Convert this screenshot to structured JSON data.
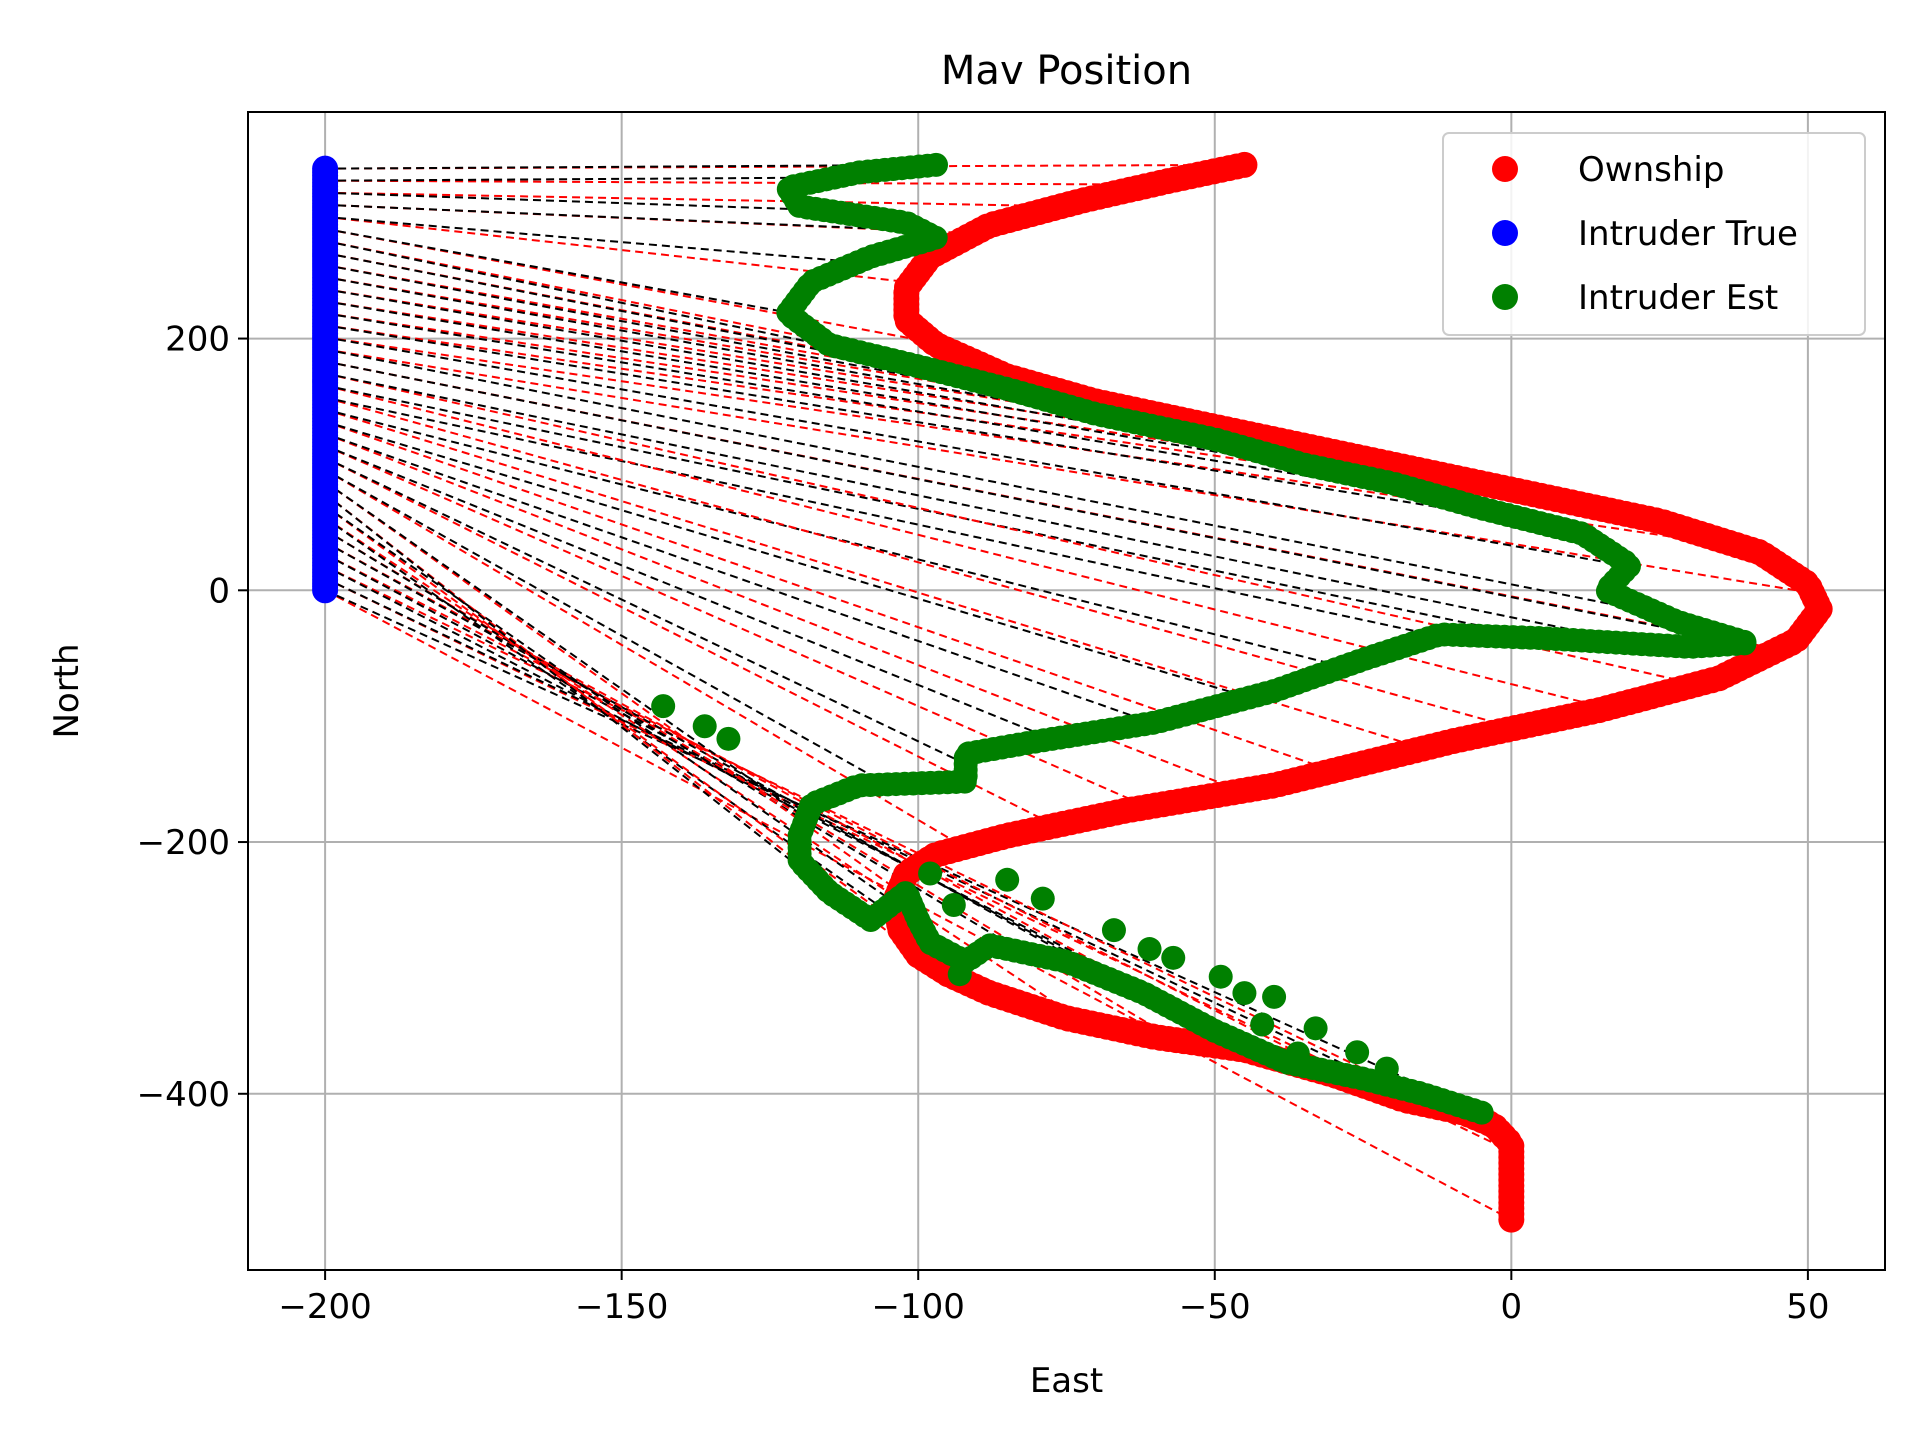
{
  "chart_data": {
    "type": "scatter",
    "title": "Mav Position",
    "xlabel": "East",
    "ylabel": "North",
    "xlim": [
      -213,
      63
    ],
    "ylim": [
      -540,
      380
    ],
    "xticks": [
      -200,
      -150,
      -100,
      -50,
      0,
      50
    ],
    "yticks": [
      -400,
      -200,
      0,
      200
    ],
    "xtick_labels": [
      "−200",
      "−150",
      "−100",
      "−50",
      "0",
      "50"
    ],
    "ytick_labels": [
      "−400",
      "−200",
      "0",
      "200"
    ],
    "grid": true,
    "legend_position": "top-right",
    "series": [
      {
        "name": "Ownship",
        "color": "#ff0000",
        "path": [
          [
            0,
            -500
          ],
          [
            0,
            -440
          ],
          [
            -3,
            -425
          ],
          [
            -8,
            -415
          ],
          [
            -18,
            -405
          ],
          [
            -30,
            -385
          ],
          [
            -45,
            -365
          ],
          [
            -60,
            -355
          ],
          [
            -75,
            -340
          ],
          [
            -88,
            -320
          ],
          [
            -95,
            -305
          ],
          [
            -100,
            -290
          ],
          [
            -103,
            -270
          ],
          [
            -104,
            -248
          ],
          [
            -102,
            -225
          ],
          [
            -97,
            -210
          ],
          [
            -85,
            -195
          ],
          [
            -65,
            -175
          ],
          [
            -40,
            -155
          ],
          [
            -10,
            -120
          ],
          [
            15,
            -95
          ],
          [
            35,
            -70
          ],
          [
            48,
            -40
          ],
          [
            52,
            -15
          ],
          [
            50,
            5
          ],
          [
            42,
            30
          ],
          [
            25,
            55
          ],
          [
            0,
            80
          ],
          [
            -25,
            105
          ],
          [
            -50,
            130
          ],
          [
            -70,
            150
          ],
          [
            -85,
            170
          ],
          [
            -97,
            195
          ],
          [
            -102,
            215
          ],
          [
            -102,
            240
          ],
          [
            -98,
            265
          ],
          [
            -88,
            290
          ],
          [
            -72,
            310
          ],
          [
            -58,
            325
          ],
          [
            -45,
            338
          ]
        ]
      },
      {
        "name": "Intruder True",
        "color": "#0000ff",
        "x": -200,
        "y_range": [
          0,
          335
        ]
      },
      {
        "name": "Intruder Est",
        "color": "#008000",
        "path": [
          [
            -5,
            -415
          ],
          [
            -15,
            -400
          ],
          [
            -25,
            -388
          ],
          [
            -38,
            -375
          ],
          [
            -50,
            -350
          ],
          [
            -62,
            -320
          ],
          [
            -75,
            -295
          ],
          [
            -88,
            -282
          ],
          [
            -92,
            -295
          ],
          [
            -98,
            -280
          ],
          [
            -100,
            -262
          ],
          [
            -102,
            -240
          ],
          [
            -108,
            -262
          ],
          [
            -115,
            -240
          ],
          [
            -120,
            -215
          ],
          [
            -120,
            -195
          ],
          [
            -118,
            -170
          ],
          [
            -110,
            -155
          ],
          [
            -92,
            -152
          ],
          [
            -92,
            -130
          ],
          [
            -80,
            -120
          ],
          [
            -60,
            -105
          ],
          [
            -40,
            -80
          ],
          [
            -25,
            -55
          ],
          [
            -12,
            -35
          ],
          [
            5,
            -38
          ],
          [
            30,
            -45
          ],
          [
            40,
            -42
          ],
          [
            28,
            -25
          ],
          [
            16,
            0
          ],
          [
            20,
            20
          ],
          [
            12,
            45
          ],
          [
            -5,
            65
          ],
          [
            -20,
            85
          ],
          [
            -35,
            100
          ],
          [
            -50,
            120
          ],
          [
            -70,
            140
          ],
          [
            -85,
            160
          ],
          [
            -100,
            178
          ],
          [
            -115,
            195
          ],
          [
            -122,
            220
          ],
          [
            -118,
            245
          ],
          [
            -108,
            265
          ],
          [
            -97,
            280
          ],
          [
            -102,
            292
          ],
          [
            -120,
            305
          ],
          [
            -122,
            320
          ],
          [
            -110,
            332
          ],
          [
            -97,
            338
          ]
        ],
        "outliers": [
          [
            -143,
            -92
          ],
          [
            -136,
            -108
          ],
          [
            -132,
            -118
          ],
          [
            -85,
            -230
          ],
          [
            -79,
            -245
          ],
          [
            -67,
            -270
          ],
          [
            -61,
            -285
          ],
          [
            -57,
            -292
          ],
          [
            -49,
            -307
          ],
          [
            -45,
            -320
          ],
          [
            -40,
            -323
          ],
          [
            -33,
            -348
          ],
          [
            -26,
            -367
          ],
          [
            -21,
            -380
          ],
          [
            -36,
            -368
          ],
          [
            -42,
            -345
          ],
          [
            -93,
            -305
          ],
          [
            -94,
            -250
          ],
          [
            -98,
            -225
          ]
        ]
      }
    ],
    "connector_lines": {
      "red_dashed_label": "Ownship to Intruder True (dashed red)",
      "black_dashed_label": "Intruder True to Intruder Est (dashed black)"
    }
  }
}
